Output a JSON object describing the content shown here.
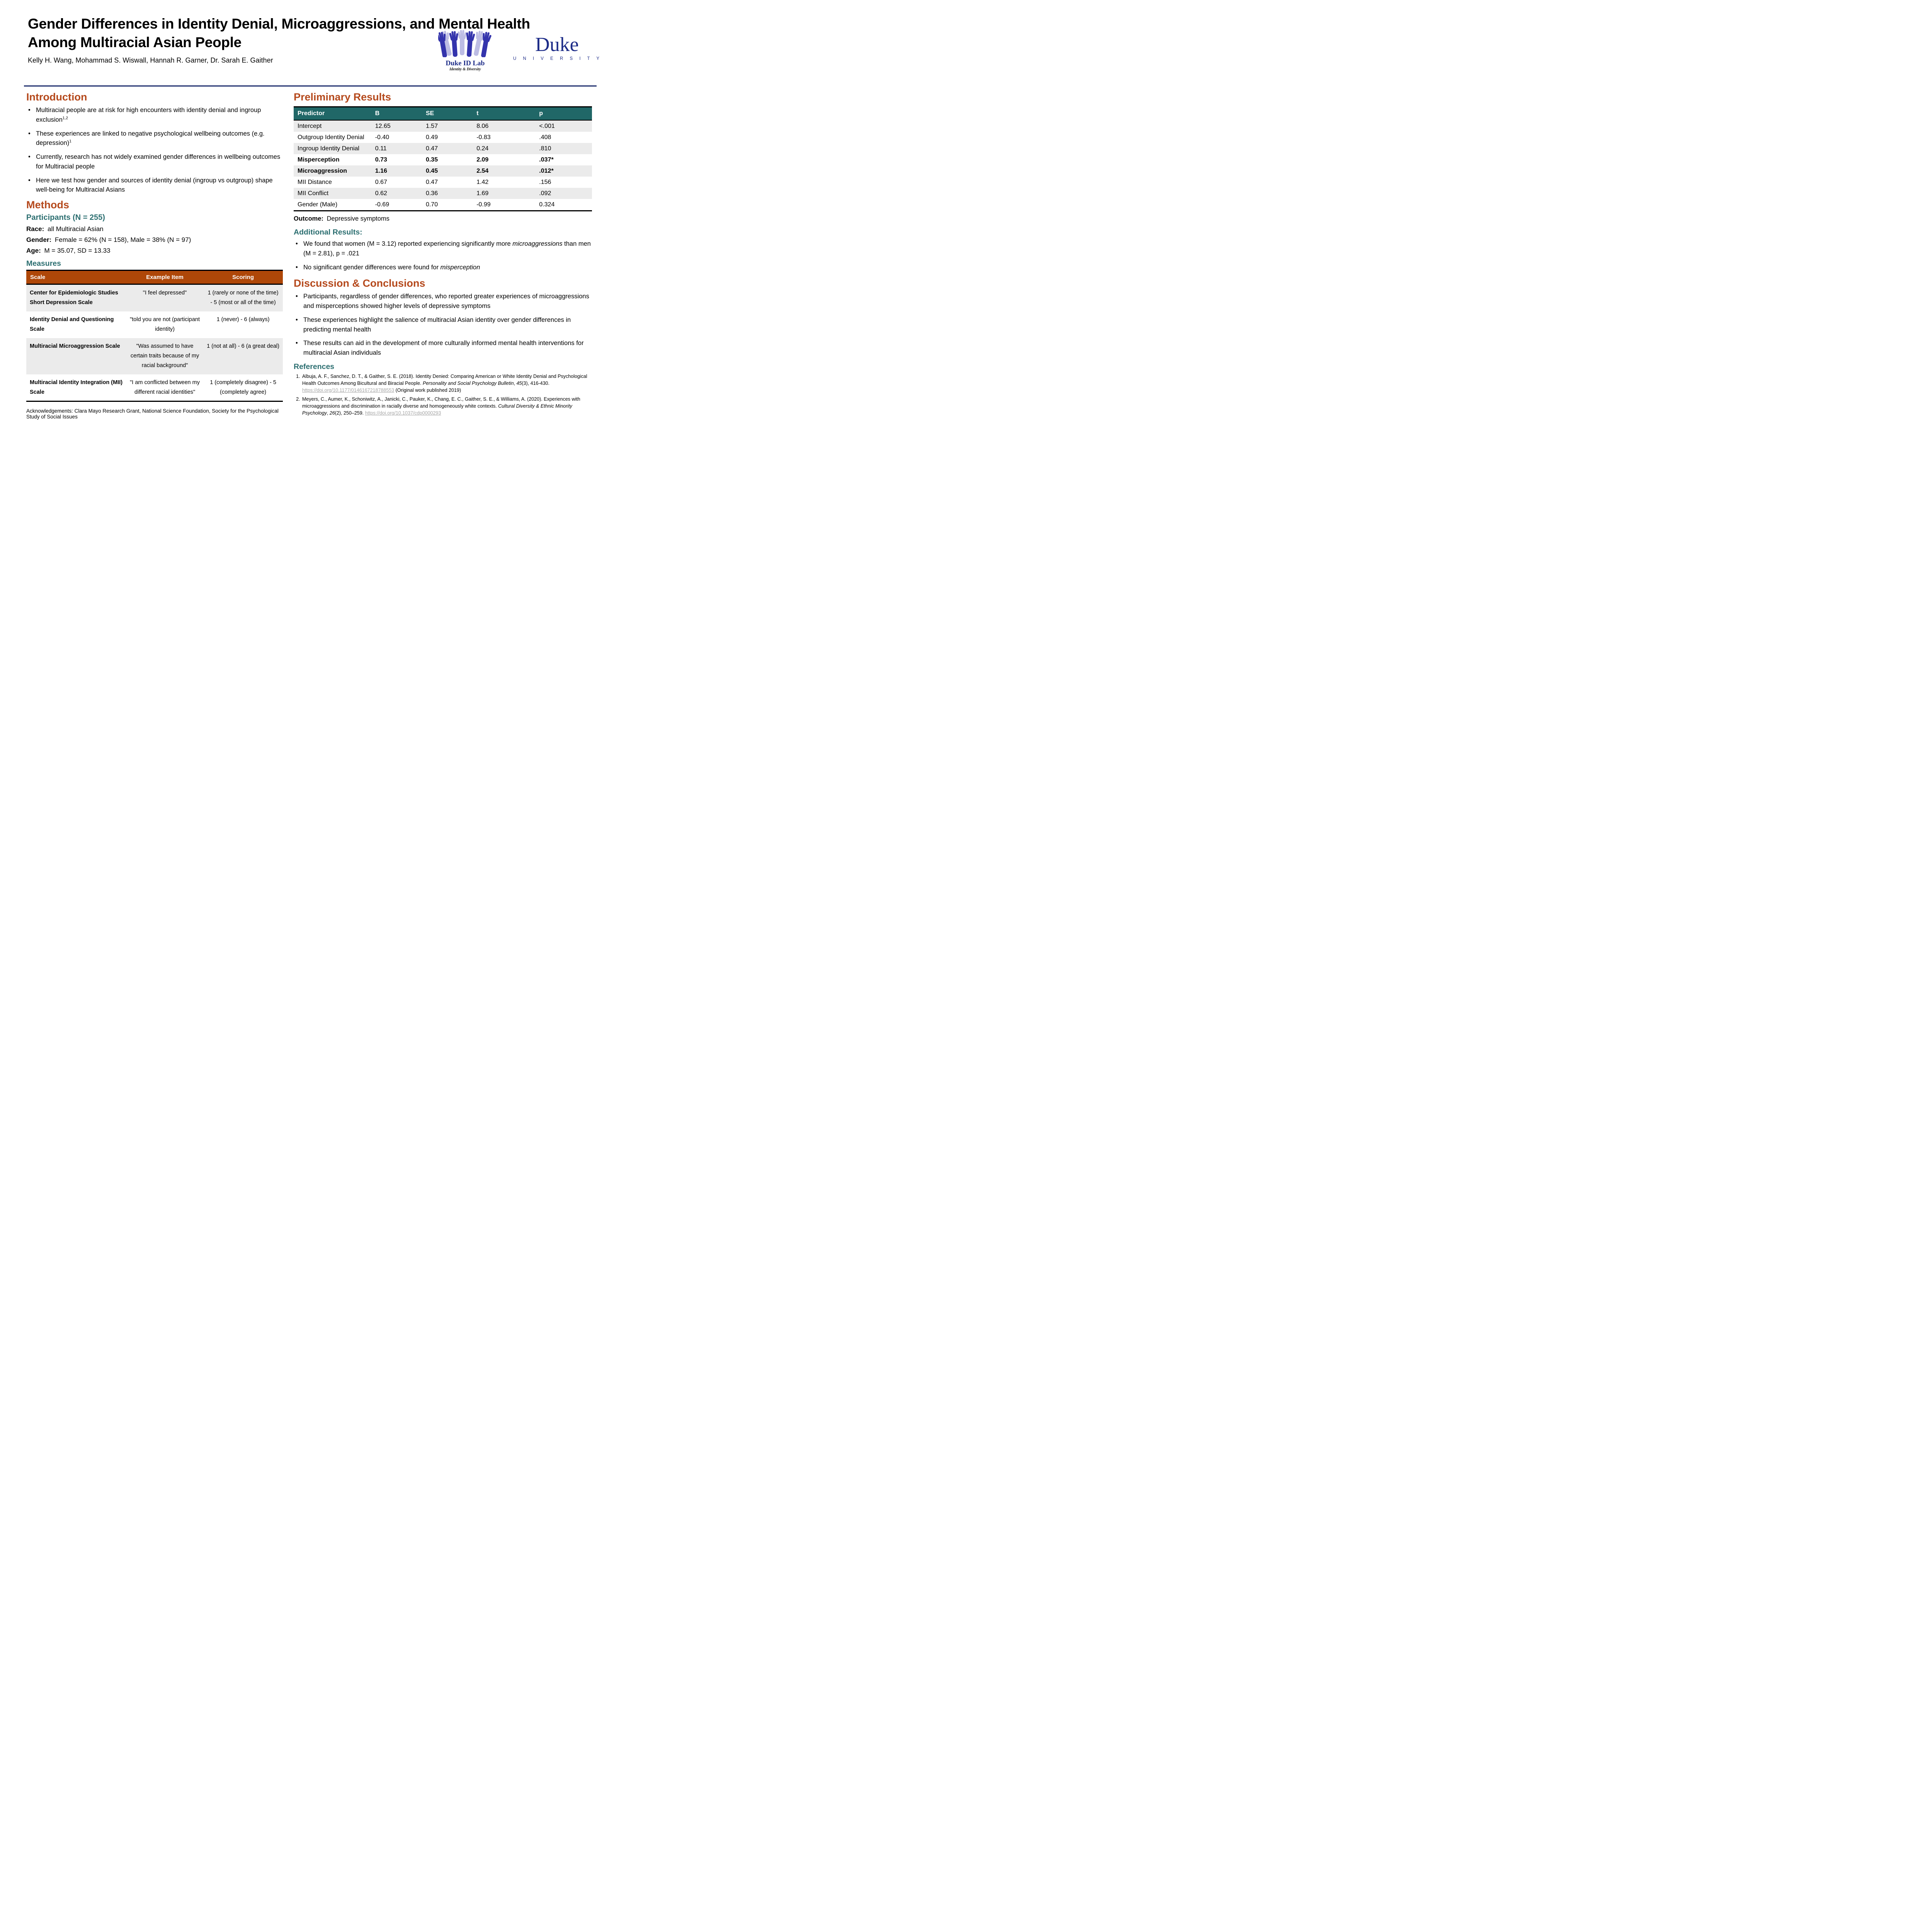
{
  "colors": {
    "rust": "#B5491C",
    "rustbg": "#AF4708",
    "teal": "#2B6E70",
    "tealbg": "#206767",
    "rowgray": "#EBEBEB",
    "navy": "#1D2C88",
    "rule": "#1B2B6B",
    "link": "#A6A6A6",
    "handdark": "#3434AC",
    "handlight": "#BDBDE4"
  },
  "header": {
    "title_line1": "Gender Differences in Identity Denial, Microaggressions, and Mental Health",
    "title_line2": "Among Multiracial Asian People",
    "authors": "Kelly H. Wang, Mohammad S. Wiswall, Hannah R. Garner, Dr. Sarah E. Gaither"
  },
  "logos": {
    "idlab_name": "Duke ID Lab",
    "idlab_tagline": "Identity & Diversity",
    "duke_wordmark": "Duke",
    "duke_university": "U N I V E R S I T Y"
  },
  "introduction": {
    "heading": "Introduction",
    "bullets": [
      [
        {
          "t": "Multiracial people are at risk for high encounters with identity denial and ingroup exclusion"
        },
        {
          "t": "1,2",
          "s": "sup"
        }
      ],
      [
        {
          "t": "These experiences are linked to negative psychological wellbeing outcomes (e.g. depression)"
        },
        {
          "t": "1",
          "s": "sup"
        }
      ],
      [
        {
          "t": "Currently, research has not widely examined gender differences in wellbeing outcomes for Multiracial people"
        }
      ],
      [
        {
          "t": "Here we test how gender and sources of identity denial (ingroup vs outgroup) shape well-being for Multiracial Asians"
        }
      ]
    ]
  },
  "methods": {
    "heading": "Methods",
    "participants_heading": "Participants (N = 255)",
    "demographics": [
      {
        "label": "Race:",
        "value": "all Multiracial Asian"
      },
      {
        "label": "Gender:",
        "value": "Female = 62% (N = 158), Male = 38% (N = 97)"
      },
      {
        "label": "Age:",
        "value": "M = 35.07, SD = 13.33"
      }
    ],
    "measures_heading": "Measures",
    "measures_table": {
      "headers": [
        "Scale",
        "Example Item",
        "Scoring"
      ],
      "rows": [
        {
          "scale": "Center for Epidemiologic Studies Short Depression Scale",
          "example": "\"I feel depressed\"",
          "scoring": "1 (rarely or none of the time) - 5 (most or all of the time)"
        },
        {
          "scale": "Identity Denial and Questioning Scale",
          "example": "\"told you are not (participant identity)",
          "scoring": "1 (never) - 6 (always)"
        },
        {
          "scale": "Multiracial Microaggression Scale",
          "example": "\"Was assumed to have certain traits because of my racial background\"",
          "scoring": "1 (not at all) - 6 (a great deal)"
        },
        {
          "scale": "Multiracial Identity Integration (MII) Scale",
          "example": "\"I am conflicted between my different racial identities\"",
          "scoring": "1 (completely disagree) - 5 (completely agree)"
        }
      ]
    }
  },
  "results": {
    "heading": "Preliminary Results",
    "table": {
      "headers": [
        "Predictor",
        "B",
        "SE",
        "t",
        "p"
      ],
      "rows": [
        {
          "predictor": "Intercept",
          "b": "12.65",
          "se": "1.57",
          "t": "8.06",
          "p": "<.001",
          "bold": false
        },
        {
          "predictor": "Outgroup Identity Denial",
          "b": "-0.40",
          "se": "0.49",
          "t": "-0.83",
          "p": ".408",
          "bold": false
        },
        {
          "predictor": "Ingroup Identity Denial",
          "b": "0.11",
          "se": "0.47",
          "t": "0.24",
          "p": ".810",
          "bold": false
        },
        {
          "predictor": "Misperception",
          "b": "0.73",
          "se": "0.35",
          "t": "2.09",
          "p": ".037*",
          "bold": true
        },
        {
          "predictor": "Microaggression",
          "b": "1.16",
          "se": "0.45",
          "t": "2.54",
          "p": ".012*",
          "bold": true
        },
        {
          "predictor": "MII Distance",
          "b": "0.67",
          "se": "0.47",
          "t": "1.42",
          "p": ".156",
          "bold": false
        },
        {
          "predictor": "MII Conflict",
          "b": "0.62",
          "se": "0.36",
          "t": "1.69",
          "p": ".092",
          "bold": false
        },
        {
          "predictor": "Gender (Male)",
          "b": "-0.69",
          "se": "0.70",
          "t": "-0.99",
          "p": "0.324",
          "bold": false
        }
      ]
    },
    "outcome_label": "Outcome:",
    "outcome_value": "Depressive symptoms",
    "additional_heading": "Additional Results:",
    "additional_bullets": [
      [
        {
          "t": "We found that women (M = 3.12) reported experiencing significantly more "
        },
        {
          "t": "microaggressions",
          "s": "i"
        },
        {
          "t": " than men (M = 2.81), p = .021"
        }
      ],
      [
        {
          "t": "No significant gender differences were found for "
        },
        {
          "t": "misperception",
          "s": "i"
        }
      ]
    ]
  },
  "discussion": {
    "heading": "Discussion & Conclusions",
    "bullets": [
      "Participants, regardless of gender differences, who reported greater experiences of microaggressions and misperceptions showed higher levels of depressive symptoms",
      "These experiences highlight the salience of multiracial Asian identity over gender differences in predicting mental health",
      "These results can aid in the development of more culturally informed mental health interventions for multiracial Asian individuals"
    ]
  },
  "references": {
    "heading": "References",
    "items": [
      [
        {
          "t": "Albuja, A. F., Sanchez, D. T., & Gaither, S. E. (2018). Identity Denied: Comparing American or White Identity Denial and Psychological Health Outcomes Among Bicultural and Biracial People. "
        },
        {
          "t": "Personality and Social Psychology Bulletin",
          "s": "i"
        },
        {
          "t": ", "
        },
        {
          "t": "45",
          "s": "i"
        },
        {
          "t": "(3), 416-430. "
        },
        {
          "t": "https://doi.org/10.1177/0146167218788553",
          "s": "link"
        },
        {
          "t": " (Original work published 2019)"
        }
      ],
      [
        {
          "t": "Meyers, C., Aumer, K., Schoniwitz, A., Janicki, C., Pauker, K., Chang, E. C., Gaither, S. E., & Williams, A. (2020). Experiences with microaggressions and discrimination in racially diverse and homogeneously white contexts. "
        },
        {
          "t": "Cultural Diversity & Ethnic Minority Psychology",
          "s": "i"
        },
        {
          "t": ", "
        },
        {
          "t": "26",
          "s": "i"
        },
        {
          "t": "(2), 250–259. "
        },
        {
          "t": "https://doi.org/10.1037/cdp0000293",
          "s": "link"
        }
      ]
    ]
  },
  "acknowledgements": "Acknowledgements: Clara Mayo Research Grant, National Science Foundation, Society for the Psychological Study of Social Issues"
}
